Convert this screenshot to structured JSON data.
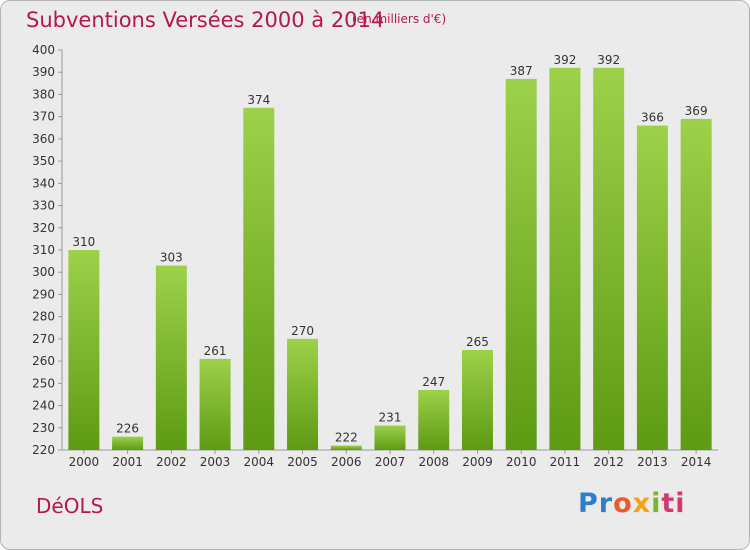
{
  "header": {
    "title": "Subventions Versées 2000 à 2014",
    "subtitle": "(en milliers d'€)"
  },
  "footer": {
    "commune": "DéOLS",
    "logo_letters": [
      "Pr",
      "o",
      "x",
      "i",
      "ti"
    ]
  },
  "colors": {
    "title": "#b5174f",
    "bar_top": "#9dd14a",
    "bar_bottom": "#5e9a14",
    "background": "#ebebeb"
  },
  "chart_data": {
    "type": "bar",
    "title": "Subventions Versées 2000 à 2014",
    "subtitle": "(en milliers d'€)",
    "categories": [
      "2000",
      "2001",
      "2002",
      "2003",
      "2004",
      "2005",
      "2006",
      "2007",
      "2008",
      "2009",
      "2010",
      "2011",
      "2012",
      "2013",
      "2014"
    ],
    "values": [
      310,
      226,
      303,
      261,
      374,
      270,
      222,
      231,
      247,
      265,
      387,
      392,
      392,
      366,
      369
    ],
    "ylim": [
      220,
      400
    ],
    "ytick_step": 10,
    "grid": false,
    "legend": "none"
  }
}
